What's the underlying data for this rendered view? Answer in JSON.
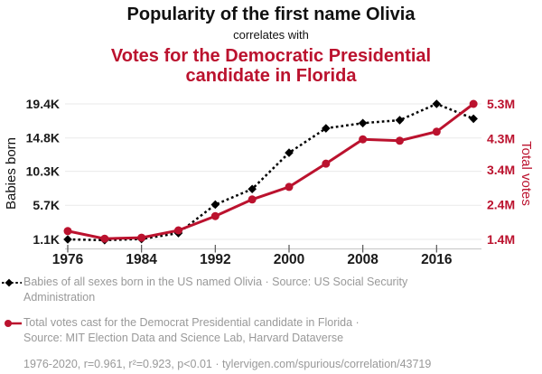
{
  "header": {
    "title_line1": "Popularity of the first name Olivia",
    "connector": "correlates with",
    "title_line2": "Votes for the Democratic Presidential candidate in Florida"
  },
  "colors": {
    "accent_red": "#bb122e",
    "series_black": "#000000",
    "tick_label_black": "#1a1a1a",
    "legend_gray": "#999999",
    "gridline": "#eaeaea",
    "axis_line": "#cccccc",
    "tick_mark": "#555555"
  },
  "chart_data": {
    "type": "line",
    "x": [
      1976,
      1980,
      1984,
      1988,
      1992,
      1996,
      2000,
      2004,
      2008,
      2012,
      2016,
      2020
    ],
    "x_tick_labels": [
      "1976",
      "1984",
      "1992",
      "2000",
      "2008",
      "2016"
    ],
    "x_tick_years": [
      1976,
      1984,
      1992,
      2000,
      2008,
      2016
    ],
    "series": [
      {
        "name": "Babies of all sexes born in the US named Olivia",
        "axis": "left",
        "style": "dotted",
        "marker": "diamond",
        "color": "#000000",
        "values": [
          1100,
          1000,
          1150,
          1950,
          5800,
          7900,
          12800,
          16100,
          16800,
          17200,
          19400,
          17400
        ]
      },
      {
        "name": "Total votes cast for the Democrat Presidential candidate in Florida",
        "axis": "right",
        "style": "solid",
        "marker": "circle",
        "color": "#bb122e",
        "values_millions": [
          1.64,
          1.42,
          1.45,
          1.66,
          2.07,
          2.55,
          2.91,
          3.58,
          4.28,
          4.24,
          4.5,
          5.3
        ]
      }
    ],
    "left_axis": {
      "label": "Babies born",
      "tick_labels": [
        "19.4K",
        "14.8K",
        "10.3K",
        "5.7K",
        "1.1K"
      ],
      "tick_values": [
        19400,
        14800,
        10300,
        5700,
        1100
      ],
      "range": [
        1100,
        19400
      ]
    },
    "right_axis": {
      "label": "Total votes",
      "tick_labels": [
        "5.3M",
        "4.3M",
        "3.4M",
        "2.4M",
        "1.4M"
      ],
      "tick_values": [
        5.3,
        4.3,
        3.4,
        2.4,
        1.4
      ],
      "range": [
        1.4,
        5.3
      ]
    },
    "grid": true,
    "legend_position": "bottom"
  },
  "legend": {
    "entries": [
      {
        "line1": "Babies of all sexes born in the US named Olivia · Source: US Social Security",
        "line2": "Administration"
      },
      {
        "line1": "Total votes cast for the Democrat Presidential candidate in Florida ·",
        "line2": "Source: MIT Election Data and Science Lab, Harvard Dataverse"
      }
    ],
    "stats_line": "1976-2020, r=0.961, r²=0.923, p<0.01 · tylervigen.com/spurious/correlation/43719"
  }
}
